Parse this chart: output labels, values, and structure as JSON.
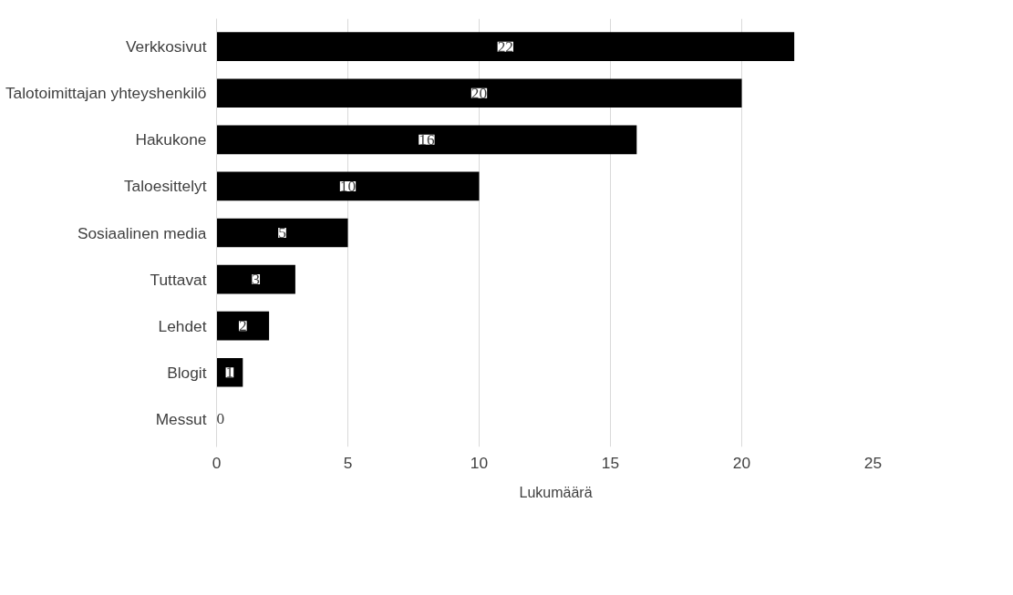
{
  "chart_data": {
    "type": "bar",
    "orientation": "horizontal",
    "categories": [
      "Verkkosivut",
      "Talotoimittajan yhteyshenkilö",
      "Hakukone",
      "Taloesittelyt",
      "Sosiaalinen media",
      "Tuttavat",
      "Lehdet",
      "Blogit",
      "Messut"
    ],
    "series": [
      {
        "name": "Lukumäärä",
        "color": "#000000",
        "values": [
          22,
          20,
          16,
          10,
          5,
          3,
          2,
          1,
          0
        ]
      }
    ],
    "xlim": [
      0,
      25
    ],
    "xticks": [
      0,
      5,
      10,
      15,
      20,
      25
    ],
    "grid": "x",
    "legend": "bottom",
    "data_labels": true
  }
}
